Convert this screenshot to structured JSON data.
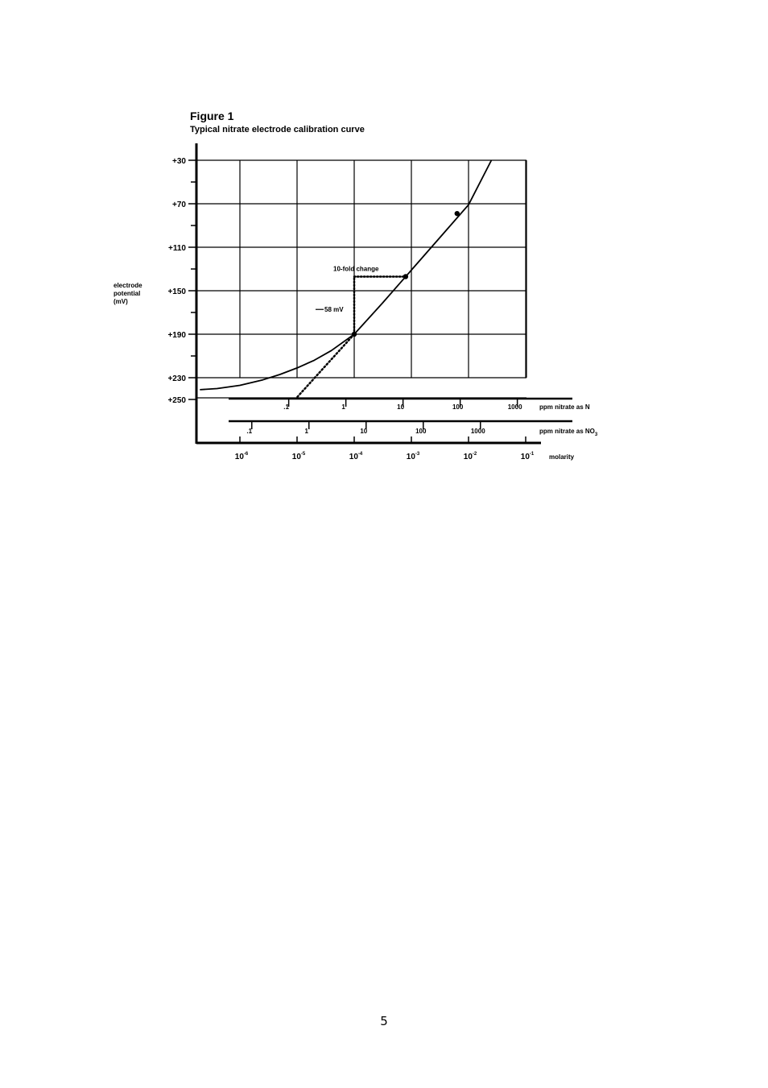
{
  "page": {
    "number": "5"
  },
  "chart_data": {
    "type": "line",
    "title": "Figure 1",
    "subtitle": "Typical nitrate electrode calibration curve",
    "ylabel": [
      "electrode",
      "potential",
      "(mV)"
    ],
    "y_ticks": [
      "+30",
      "+70",
      "+110",
      "+150",
      "+190",
      "+230",
      "+250"
    ],
    "y_values": [
      30,
      70,
      110,
      150,
      190,
      230,
      250
    ],
    "ylim": [
      30,
      250
    ],
    "y_direction": "increasing-downward",
    "x_scale": "log",
    "xlabel": "molarity",
    "x_ticks": [
      "10-6",
      "10-5",
      "10-4",
      "10-3",
      "10-2",
      "10-1"
    ],
    "x_tick_values": [
      -6,
      -5,
      -4,
      -3,
      -2,
      -1
    ],
    "x_tick_base": "10",
    "x_tick_exponents": [
      "-6",
      "-5",
      "-4",
      "-3",
      "-2",
      "-1"
    ],
    "secondary_axes": [
      {
        "label": "ppm nitrate as N",
        "ticks": [
          ".1",
          "1",
          "10",
          "100",
          "1000"
        ],
        "log_molarity": [
          -5.146,
          -4.146,
          -3.146,
          -2.146,
          -1.146
        ]
      },
      {
        "label": "ppm nitrate as NO3",
        "label_text": "ppm nitrate as NO",
        "label_sub": "3",
        "ticks": [
          ".1",
          "1",
          "10",
          "100",
          "1000"
        ],
        "log_molarity": [
          -5.792,
          -4.792,
          -3.792,
          -2.792,
          -1.792
        ]
      }
    ],
    "series": [
      {
        "style": "solid",
        "x": [
          -6.7,
          -6.4,
          -6.0,
          -5.6,
          -5.3,
          -5.0,
          -4.7,
          -4.4,
          -4.0,
          -3.5,
          -3.0,
          -2.5,
          -2.0,
          -1.6
        ],
        "y": [
          241,
          240,
          237,
          232,
          227,
          221,
          214,
          205,
          190,
          161,
          131,
          101,
          71,
          30
        ]
      },
      {
        "style": "dotted",
        "x": [
          -4.0,
          -4.5,
          -5.0
        ],
        "y": [
          190,
          219,
          248
        ]
      }
    ],
    "points": [
      {
        "x": -4.0,
        "y": 190
      },
      {
        "x": -3.1,
        "y": 137
      },
      {
        "x": -2.2,
        "y": 79
      }
    ],
    "annotations": [
      {
        "text": "10-fold change",
        "from": [
          -4.0,
          137
        ],
        "to": [
          -3.1,
          137
        ]
      },
      {
        "text": "58 mV",
        "from": [
          -4.0,
          190
        ],
        "to": [
          -4.0,
          137
        ]
      }
    ],
    "grid": true
  }
}
